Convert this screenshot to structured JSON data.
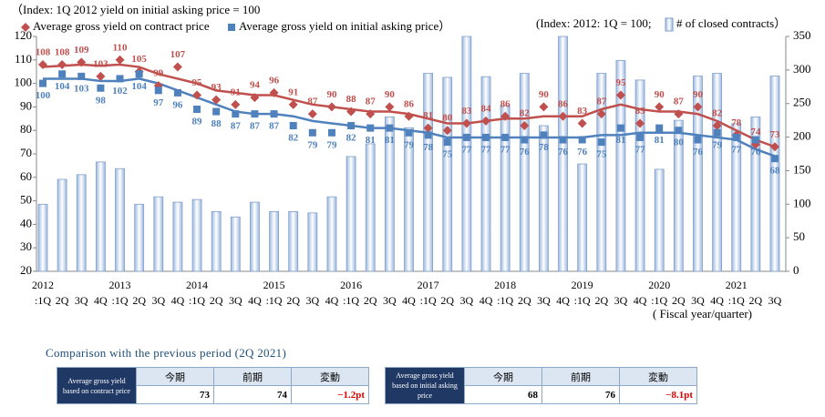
{
  "chart_data": {
    "type": "combo",
    "note_left": "（Index: 1Q 2012 yield on initial asking price = 100",
    "note_right": "(Index: 2012: 1Q = 100;",
    "x_title": "( Fiscal year/quarter)",
    "categories": [
      ":1Q",
      "2Q",
      "3Q",
      "4Q",
      ":1Q",
      "2Q",
      "3Q",
      "4Q",
      ":1Q",
      "2Q",
      "3Q",
      "4Q",
      ":1Q",
      "2Q",
      "3Q",
      "4Q",
      ":1Q",
      "2Q",
      "3Q",
      "4Q",
      ":1Q",
      "2Q",
      "3Q",
      "4Q",
      ":1Q",
      "2Q",
      "3Q",
      "4Q",
      ":1Q",
      "2Q",
      "3Q",
      "4Q",
      ":1Q",
      "2Q",
      "3Q",
      "4Q",
      ":1Q",
      "2Q",
      "3Q"
    ],
    "years": [
      "2012",
      null,
      null,
      null,
      "2013",
      null,
      null,
      null,
      "2014",
      null,
      null,
      null,
      "2015",
      null,
      null,
      null,
      "2016",
      null,
      null,
      null,
      "2017",
      null,
      null,
      null,
      "2018",
      null,
      null,
      null,
      "2019",
      null,
      null,
      null,
      "2020",
      null,
      null,
      null,
      "2021",
      null,
      null
    ],
    "ylim": [
      20,
      120
    ],
    "yticks": [
      20,
      30,
      40,
      50,
      60,
      70,
      80,
      90,
      100,
      110,
      120
    ],
    "y2lim": [
      0,
      350
    ],
    "y2ticks": [
      0,
      50,
      100,
      150,
      200,
      250,
      300,
      350
    ],
    "series": [
      {
        "name": "# of closed contracts）",
        "kind": "bar",
        "axis": "y2",
        "color": "#c5d7ee",
        "values": [
          100,
          137,
          144,
          163,
          153,
          100,
          111,
          103,
          107,
          89,
          81,
          103,
          89,
          89,
          87,
          111,
          171,
          190,
          230,
          214,
          295,
          289,
          350,
          290,
          247,
          295,
          217,
          350,
          160,
          295,
          314,
          285,
          152,
          225,
          291,
          295,
          220,
          230,
          291
        ]
      },
      {
        "kind": "line",
        "color": "#c0504d",
        "values": [
          107,
          107.5,
          108,
          107.5,
          108,
          107,
          104,
          102,
          100,
          97,
          96,
          95,
          95,
          93,
          91,
          90,
          89,
          88,
          88,
          87,
          85,
          83,
          83,
          84,
          85,
          85,
          86,
          86,
          86,
          89,
          91,
          89,
          88,
          88,
          87,
          84,
          80,
          76,
          73
        ]
      },
      {
        "kind": "line",
        "color": "#4f81bd",
        "values": [
          102,
          102,
          102,
          101,
          101,
          102,
          100,
          97,
          94,
          91,
          88,
          87,
          87,
          86,
          84,
          83,
          82,
          81,
          81,
          80,
          79,
          77,
          77,
          77,
          77,
          77,
          77,
          77,
          77,
          78,
          78,
          79,
          79,
          79,
          78,
          77,
          76,
          72,
          69
        ]
      },
      {
        "name": "Average gross yield on contract price",
        "kind": "marker",
        "marker": "diamond",
        "label_pos": "above",
        "color": "#c0504d",
        "values": [
          108,
          108,
          109,
          103,
          110,
          105,
          99,
          107,
          95,
          93,
          91,
          94,
          96,
          91,
          87,
          90,
          88,
          87,
          90,
          86,
          81,
          80,
          83,
          84,
          86,
          82,
          90,
          86,
          83,
          87,
          95,
          83,
          90,
          87,
          90,
          82,
          78,
          74,
          73
        ]
      },
      {
        "name": "Average gross yield on initial asking price）",
        "kind": "marker",
        "marker": "square",
        "label_pos": "below",
        "color": "#4f81bd",
        "values": [
          100,
          104,
          103,
          98,
          102,
          104,
          97,
          96,
          89,
          88,
          87,
          87,
          87,
          82,
          79,
          79,
          82,
          81,
          81,
          79,
          78,
          75,
          77,
          77,
          77,
          76,
          78,
          76,
          76,
          75,
          81,
          77,
          81,
          80,
          76,
          79,
          77,
          76,
          68
        ]
      }
    ]
  },
  "comparison": {
    "title": "Comparison with the previous period (2Q 2021)",
    "tables": [
      {
        "label": "Average gross yield based on contract price",
        "headers": [
          "今期",
          "前期",
          "変動"
        ],
        "values": [
          73,
          74,
          "−1.2pt"
        ]
      },
      {
        "label": "Average gross yield based on initial asking price",
        "headers": [
          "今期",
          "前期",
          "変動"
        ],
        "values": [
          68,
          76,
          "−8.1pt"
        ]
      }
    ]
  }
}
